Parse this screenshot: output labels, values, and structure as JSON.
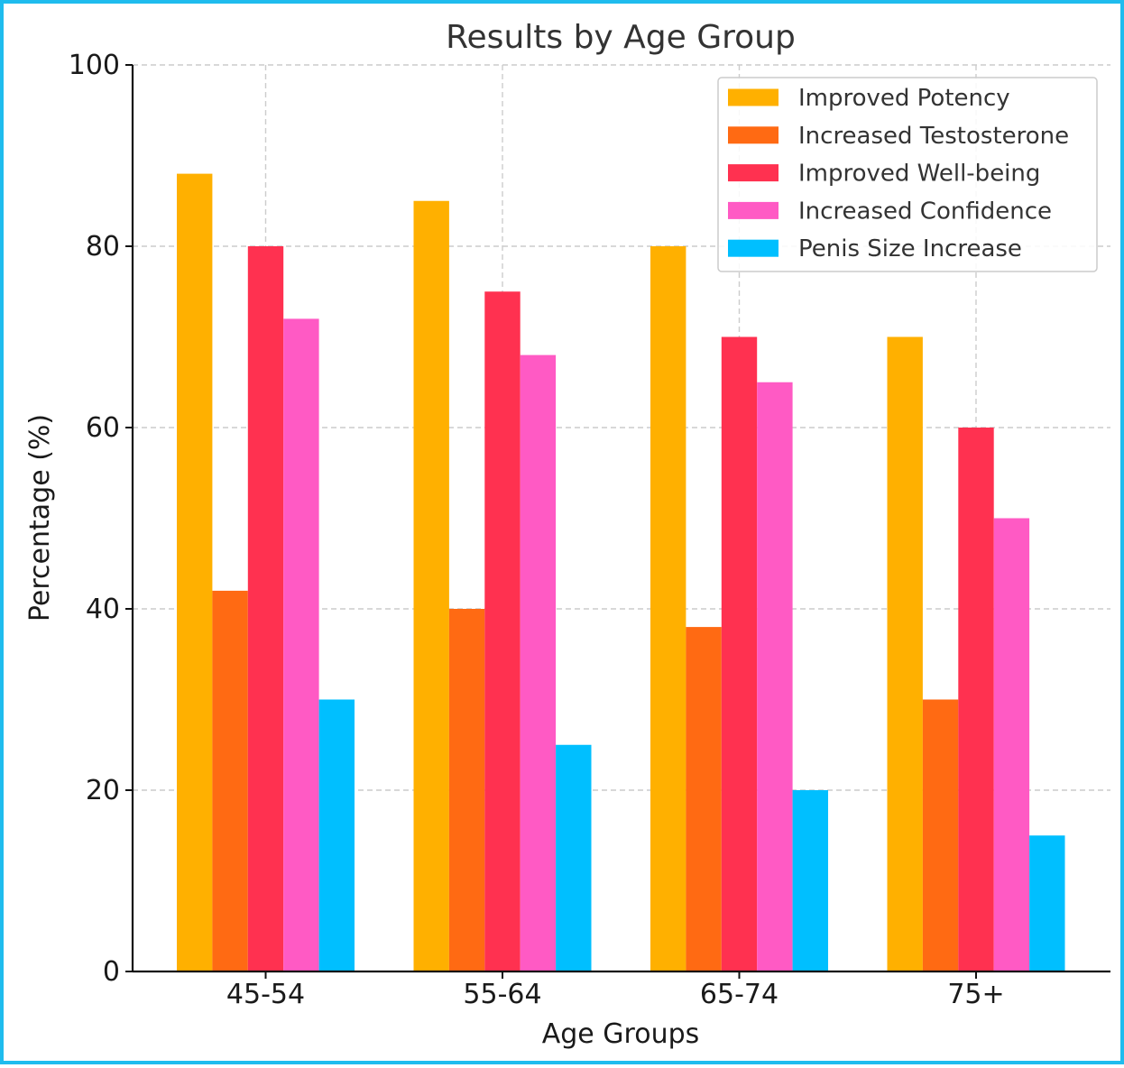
{
  "chart_data": {
    "type": "bar",
    "title": "Results by Age Group",
    "xlabel": "Age Groups",
    "ylabel": "Percentage (%)",
    "ylim": [
      0,
      100
    ],
    "yticks": [
      0,
      20,
      40,
      60,
      80,
      100
    ],
    "categories": [
      "45-54",
      "55-64",
      "65-74",
      "75+"
    ],
    "grid": true,
    "legend_position": "top-right",
    "series": [
      {
        "name": "Improved Potency",
        "color": "#ffb000",
        "values": [
          88,
          85,
          80,
          70
        ]
      },
      {
        "name": "Increased Testosterone",
        "color": "#ff6a13",
        "values": [
          42,
          40,
          38,
          30
        ]
      },
      {
        "name": "Improved Well-being",
        "color": "#ff3150",
        "values": [
          80,
          75,
          70,
          60
        ]
      },
      {
        "name": "Increased Confidence",
        "color": "#ff5ac4",
        "values": [
          72,
          68,
          65,
          50
        ]
      },
      {
        "name": "Penis Size Increase",
        "color": "#00bfff",
        "values": [
          30,
          25,
          20,
          15
        ]
      }
    ]
  }
}
